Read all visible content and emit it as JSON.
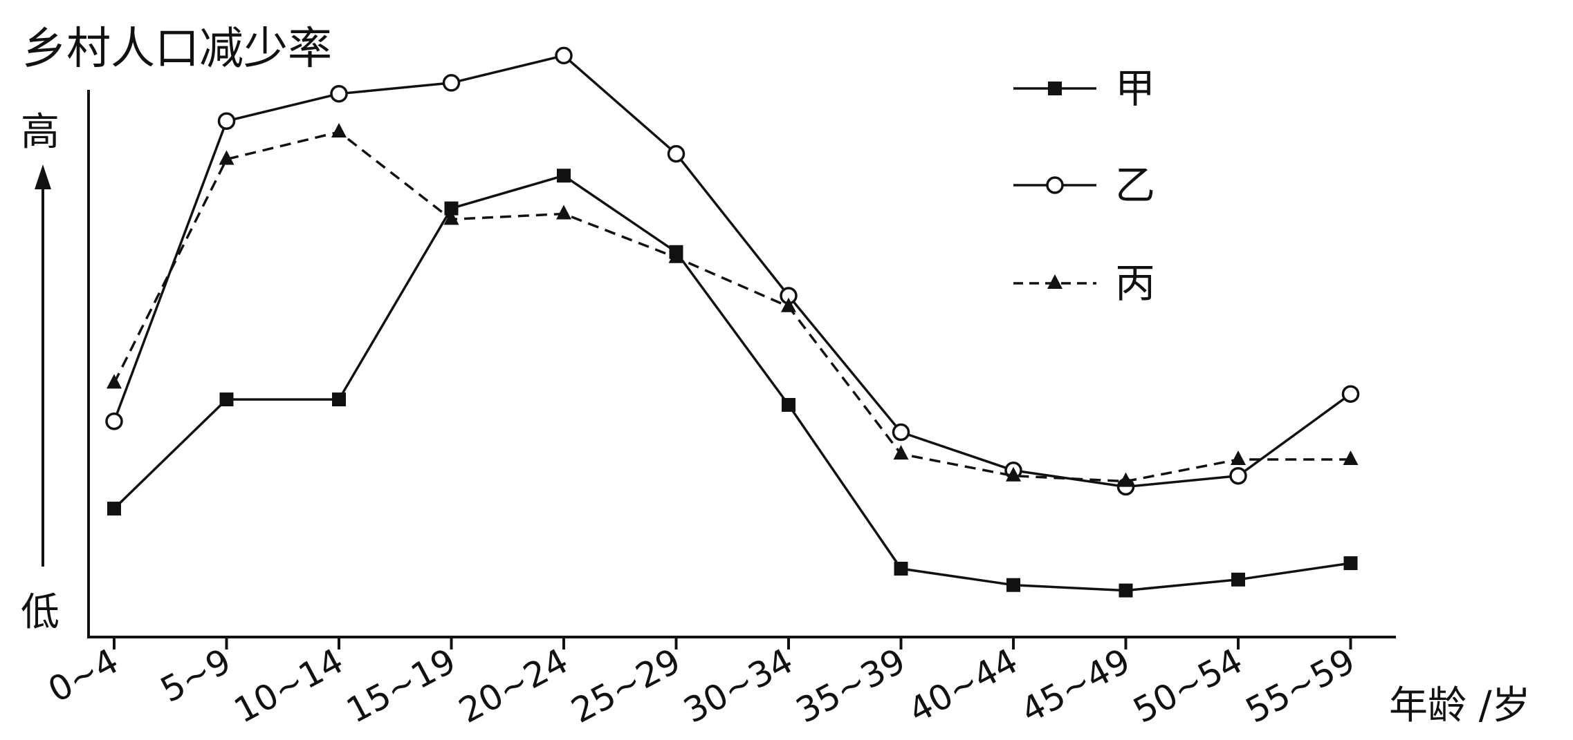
{
  "chart_data": {
    "type": "line",
    "ylabel": "乡村人口减少率",
    "y_high_label": "高",
    "y_low_label": "低",
    "xlabel": "年龄 /岁",
    "categories": [
      "0~4",
      "5~9",
      "10~14",
      "15~19",
      "20~24",
      "25~29",
      "30~34",
      "35~39",
      "40~44",
      "45~49",
      "50~54",
      "55~59"
    ],
    "ylim": [
      0,
      100
    ],
    "y_ticks_shown": false,
    "grid": false,
    "legend_position": "top-right",
    "series": [
      {
        "name": "甲",
        "marker": "filled-square",
        "line_style": "solid",
        "values": [
          21,
          41,
          41,
          76,
          82,
          68,
          40,
          10,
          7,
          6,
          8,
          11
        ]
      },
      {
        "name": "乙",
        "marker": "open-circle",
        "line_style": "solid",
        "values": [
          37,
          92,
          97,
          99,
          104,
          86,
          60,
          35,
          28,
          25,
          27,
          42
        ]
      },
      {
        "name": "丙",
        "marker": "filled-triangle",
        "line_style": "dashed",
        "values": [
          44,
          85,
          90,
          74,
          75,
          67,
          58,
          31,
          27,
          26,
          30,
          30
        ]
      }
    ],
    "colors": {
      "axis": "#111111",
      "line": "#111111",
      "background": "#ffffff"
    }
  }
}
